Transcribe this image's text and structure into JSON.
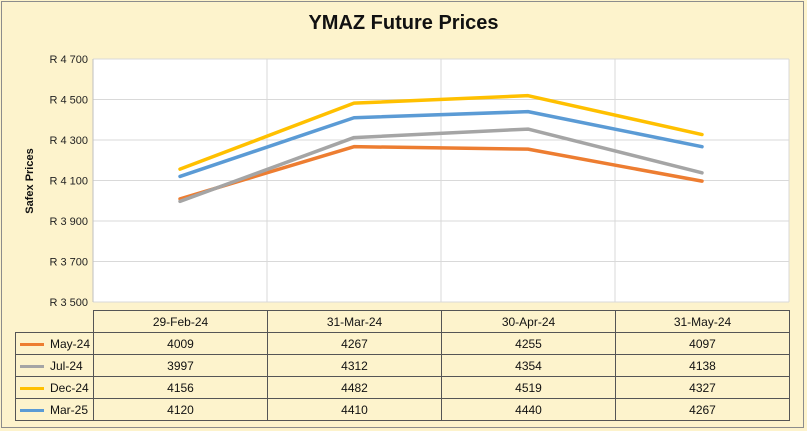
{
  "chart_data": {
    "type": "line",
    "title": "YMAZ Future Prices",
    "ylabel": "Safex Prices",
    "xlabel": "",
    "categories": [
      "29-Feb-24",
      "31-Mar-24",
      "30-Apr-24",
      "31-May-24"
    ],
    "ylim": [
      3500,
      4700
    ],
    "ytick_labels": [
      "R 4 700",
      "R 4 500",
      "R 4 300",
      "R 4 100",
      "R 3 900",
      "R 3 700",
      "R 3 500"
    ],
    "ytick_values": [
      4700,
      4500,
      4300,
      4100,
      3900,
      3700,
      3500
    ],
    "grid": true,
    "legend": "data-table",
    "series": [
      {
        "name": "May-24",
        "color": "#ed7d31",
        "values": [
          4009,
          4267,
          4255,
          4097
        ]
      },
      {
        "name": "Jul-24",
        "color": "#a5a5a5",
        "values": [
          3997,
          4312,
          4354,
          4138
        ]
      },
      {
        "name": "Dec-24",
        "color": "#ffc000",
        "values": [
          4156,
          4482,
          4519,
          4327
        ]
      },
      {
        "name": "Mar-25",
        "color": "#5b9bd5",
        "values": [
          4120,
          4410,
          4440,
          4267
        ]
      }
    ]
  }
}
